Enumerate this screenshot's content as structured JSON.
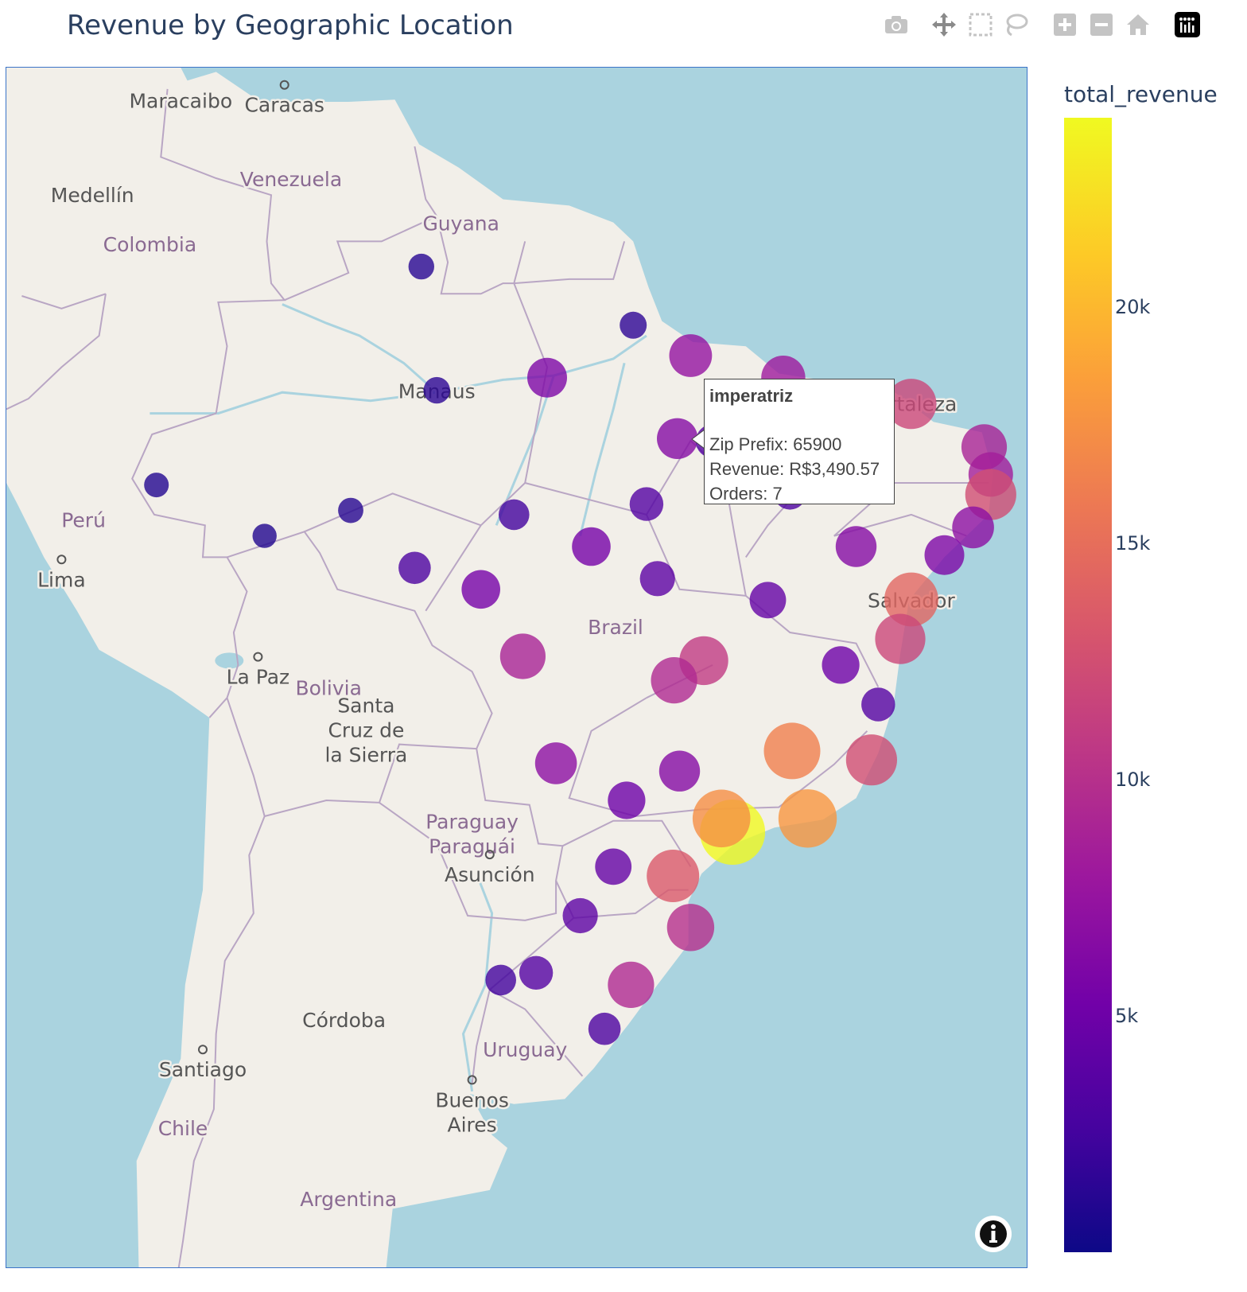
{
  "title": "Revenue by Geographic Location",
  "modebar": [
    "camera-icon",
    "pan-icon",
    "box-select-icon",
    "lasso-icon",
    "zoom-in-icon",
    "zoom-out-icon",
    "reset-home-icon",
    "plotly-logo-icon"
  ],
  "colors": {
    "ocean": "#aad3df",
    "land": "#f2efe9",
    "border": "#b9a6c4",
    "river": "#aad3df"
  },
  "map_labels": [
    {
      "text": "Maracaibo",
      "lon": -71.6,
      "lat": 10.7,
      "kind": "city"
    },
    {
      "text": "Caracas",
      "lon": -66.9,
      "lat": 10.5,
      "kind": "capital"
    },
    {
      "text": "Medellín",
      "lon": -75.6,
      "lat": 6.24,
      "kind": "city"
    },
    {
      "text": "Venezuela",
      "lon": -66.6,
      "lat": 7.0,
      "kind": "country"
    },
    {
      "text": "Guyana",
      "lon": -58.9,
      "lat": 4.9,
      "kind": "country"
    },
    {
      "text": "Colombia",
      "lon": -73.0,
      "lat": 3.9,
      "kind": "country"
    },
    {
      "text": "Manaus",
      "lon": -60.0,
      "lat": -3.1,
      "kind": "city"
    },
    {
      "text": "Perú",
      "lon": -76.0,
      "lat": -9.2,
      "kind": "country"
    },
    {
      "text": "Lima",
      "lon": -77.0,
      "lat": -12.0,
      "kind": "capital"
    },
    {
      "text": "La Paz",
      "lon": -68.1,
      "lat": -16.5,
      "kind": "capital"
    },
    {
      "text": "Bolivia",
      "lon": -64.9,
      "lat": -17.0,
      "kind": "country"
    },
    {
      "text": "Santa",
      "lon": -63.2,
      "lat": -17.8,
      "kind": "city"
    },
    {
      "text": "Cruz de",
      "lon": -63.2,
      "lat": -17.8,
      "kind": "city2"
    },
    {
      "text": "la Sierra",
      "lon": -63.2,
      "lat": -17.8,
      "kind": "city3"
    },
    {
      "text": "Paraguay",
      "lon": -58.4,
      "lat": -23.0,
      "kind": "country"
    },
    {
      "text": "Paraguái",
      "lon": -58.4,
      "lat": -23.0,
      "kind": "country2"
    },
    {
      "text": "Asunción",
      "lon": -57.6,
      "lat": -25.3,
      "kind": "capital"
    },
    {
      "text": "Córdoba",
      "lon": -64.2,
      "lat": -31.4,
      "kind": "city"
    },
    {
      "text": "Uruguay",
      "lon": -56.0,
      "lat": -32.6,
      "kind": "country"
    },
    {
      "text": "Santiago",
      "lon": -70.6,
      "lat": -33.4,
      "kind": "capital"
    },
    {
      "text": "Buenos",
      "lon": -58.4,
      "lat": -34.6,
      "kind": "capital"
    },
    {
      "text": "Aires",
      "lon": -58.4,
      "lat": -34.6,
      "kind": "city2"
    },
    {
      "text": "Chile",
      "lon": -71.5,
      "lat": -35.7,
      "kind": "country"
    },
    {
      "text": "Argentina",
      "lon": -64.0,
      "lat": -38.4,
      "kind": "country"
    },
    {
      "text": "Brazil",
      "lon": -51.9,
      "lat": -14.2,
      "kind": "country"
    },
    {
      "text": "Salvador",
      "lon": -38.5,
      "lat": -12.97,
      "kind": "city"
    },
    {
      "text": "Fortaleza",
      "lon": -38.5,
      "lat": -3.7,
      "kind": "city"
    }
  ],
  "chart_data": {
    "type": "scatter_map",
    "color_metric": "total_revenue",
    "colorbar": {
      "title": "total_revenue",
      "ticks": [
        5000,
        10000,
        15000,
        20000
      ],
      "tick_labels": [
        "5k",
        "10k",
        "15k",
        "20k"
      ],
      "range": [
        0,
        24000
      ],
      "colorscale": "plasma"
    },
    "points": [
      {
        "lon": -60.7,
        "lat": 2.8,
        "revenue": 1200
      },
      {
        "lon": -51.1,
        "lat": 0.0,
        "revenue": 1500
      },
      {
        "lon": -60.0,
        "lat": -3.1,
        "revenue": 1400
      },
      {
        "lon": -63.9,
        "lat": -8.8,
        "revenue": 1100
      },
      {
        "lon": -67.8,
        "lat": -10.0,
        "revenue": 900
      },
      {
        "lon": -72.7,
        "lat": -7.6,
        "revenue": 1000
      },
      {
        "lon": -55.0,
        "lat": -2.5,
        "revenue": 6000
      },
      {
        "lon": -48.5,
        "lat": -1.45,
        "revenue": 7500
      },
      {
        "lon": -44.3,
        "lat": -2.5,
        "revenue": 8200
      },
      {
        "lon": -49.1,
        "lat": -5.4,
        "revenue": 6500
      },
      {
        "lon": -47.5,
        "lat": -5.52,
        "revenue": 3490.57,
        "name": "imperatriz",
        "zip": "65900",
        "orders": 7
      },
      {
        "lon": -42.8,
        "lat": -5.1,
        "revenue": 7000
      },
      {
        "lon": -38.5,
        "lat": -3.75,
        "revenue": 12000
      },
      {
        "lon": -35.2,
        "lat": -5.8,
        "revenue": 9000
      },
      {
        "lon": -34.9,
        "lat": -7.1,
        "revenue": 8500
      },
      {
        "lon": -34.9,
        "lat": -8.05,
        "revenue": 12500
      },
      {
        "lon": -35.7,
        "lat": -9.6,
        "revenue": 7000
      },
      {
        "lon": -37.0,
        "lat": -10.9,
        "revenue": 6000
      },
      {
        "lon": -38.5,
        "lat": -12.97,
        "revenue": 14500
      },
      {
        "lon": -39.0,
        "lat": -14.8,
        "revenue": 12000
      },
      {
        "lon": -47.9,
        "lat": -15.8,
        "revenue": 11000
      },
      {
        "lon": -49.25,
        "lat": -16.7,
        "revenue": 9500
      },
      {
        "lon": -56.1,
        "lat": -15.6,
        "revenue": 9000
      },
      {
        "lon": -54.6,
        "lat": -20.45,
        "revenue": 7000
      },
      {
        "lon": -43.9,
        "lat": -19.9,
        "revenue": 16500
      },
      {
        "lon": -40.3,
        "lat": -20.3,
        "revenue": 12500
      },
      {
        "lon": -43.2,
        "lat": -22.9,
        "revenue": 18000
      },
      {
        "lon": -46.6,
        "lat": -23.5,
        "revenue": 24000
      },
      {
        "lon": -47.1,
        "lat": -22.9,
        "revenue": 17500
      },
      {
        "lon": -49.3,
        "lat": -25.4,
        "revenue": 13500
      },
      {
        "lon": -48.5,
        "lat": -27.6,
        "revenue": 10000
      },
      {
        "lon": -51.2,
        "lat": -30.0,
        "revenue": 9500
      },
      {
        "lon": -52.4,
        "lat": -31.8,
        "revenue": 3000
      },
      {
        "lon": -49.0,
        "lat": -20.8,
        "revenue": 6500
      },
      {
        "lon": -51.4,
        "lat": -22.1,
        "revenue": 5000
      },
      {
        "lon": -52.0,
        "lat": -25.0,
        "revenue": 4500
      },
      {
        "lon": -53.5,
        "lat": -27.1,
        "revenue": 4000
      },
      {
        "lon": -55.5,
        "lat": -29.5,
        "revenue": 3500
      },
      {
        "lon": -57.1,
        "lat": -29.8,
        "revenue": 2500
      },
      {
        "lon": -53.0,
        "lat": -10.5,
        "revenue": 5500
      },
      {
        "lon": -50.0,
        "lat": -12.0,
        "revenue": 4000
      },
      {
        "lon": -45.0,
        "lat": -13.0,
        "revenue": 4500
      },
      {
        "lon": -41.0,
        "lat": -10.5,
        "revenue": 6500
      },
      {
        "lon": -44.0,
        "lat": -8.0,
        "revenue": 3000
      },
      {
        "lon": -41.7,
        "lat": -16.0,
        "revenue": 5000
      },
      {
        "lon": -40.0,
        "lat": -17.8,
        "revenue": 3500
      },
      {
        "lon": -58.0,
        "lat": -12.5,
        "revenue": 5500
      },
      {
        "lon": -61.0,
        "lat": -11.5,
        "revenue": 3000
      },
      {
        "lon": -56.5,
        "lat": -9.0,
        "revenue": 2500
      },
      {
        "lon": -50.5,
        "lat": -8.5,
        "revenue": 3500
      }
    ]
  },
  "tooltip": {
    "name": "imperatriz",
    "zip_line": "Zip Prefix: 65900",
    "revenue_line": "Revenue: R$3,490.57",
    "orders_line": "Orders: 7"
  }
}
